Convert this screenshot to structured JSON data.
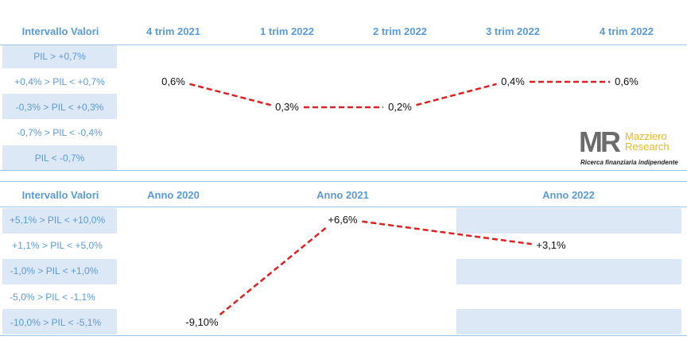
{
  "chart_data": [
    {
      "type": "line",
      "row_header": "Intervallo Valori",
      "categories": [
        "4 trim 2021",
        "1 trim 2022",
        "2 trim 2022",
        "3 trim 2022",
        "4 trim 2022"
      ],
      "bands": [
        "PIL > +0,7%",
        "+0,4% > PIL < +0,7%",
        "-0,3% > PIL < +0,3%",
        "-0,7% > PIL < -0,4%",
        "PIL < -0,7%"
      ],
      "series": [
        {
          "values": [
            0.6,
            0.3,
            0.2,
            0.4,
            0.6
          ],
          "labels": [
            "0,6%",
            "0,3%",
            "0,2%",
            "0,4%",
            "0,6%"
          ],
          "band_index": [
            1,
            2,
            2,
            1,
            1
          ],
          "line_style": "dashed"
        }
      ],
      "color": "#e02020"
    },
    {
      "type": "line",
      "row_header": "Intervallo Valori",
      "categories": [
        "Anno 2020",
        "Anno 2021",
        "Anno 2022"
      ],
      "bands": [
        "+5,1% > PIL < +10,0%",
        "+1,1% > PIL < +5,0%",
        "-1,0% > PIL < +1,0%",
        "-5,0% > PIL < -1,1%",
        "-10,0% > PIL < -5,1%"
      ],
      "series": [
        {
          "values": [
            -9.1,
            6.6,
            3.1
          ],
          "labels": [
            "-9,10%",
            "+6,6%",
            "+3,1%"
          ],
          "band_index": [
            4,
            0,
            1
          ],
          "line_style": "dashed"
        }
      ],
      "color": "#e02020"
    }
  ],
  "logo": {
    "mark": "MR",
    "name_line1": "Mazziero",
    "name_line2": "Research",
    "tagline": "Ricerca finanziaria indipendente"
  },
  "colors": {
    "header": "#5b9bd5",
    "band_shade": "#dde8f7",
    "line": "#e02020",
    "divider": "#9dc3e6"
  }
}
